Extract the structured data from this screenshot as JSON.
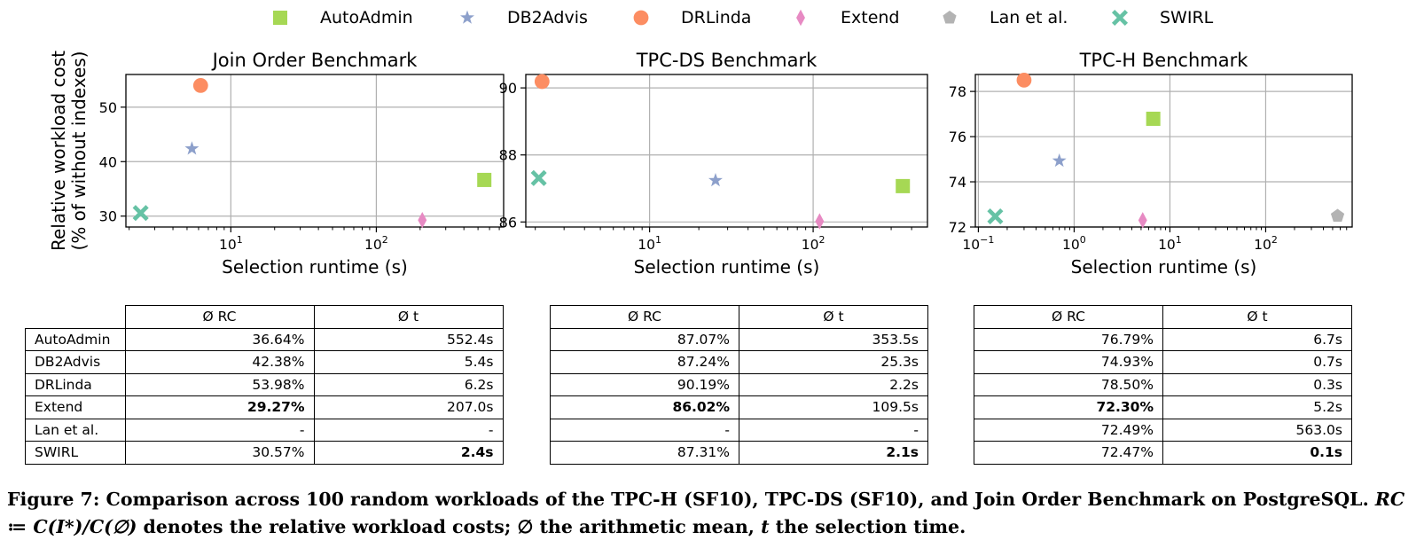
{
  "legend": [
    {
      "name": "AutoAdmin",
      "marker": "square",
      "color": "#a6d854"
    },
    {
      "name": "DB2Advis",
      "marker": "star",
      "color": "#8da0cb"
    },
    {
      "name": "DRLinda",
      "marker": "circle",
      "color": "#fc8d62"
    },
    {
      "name": "Extend",
      "marker": "diamond",
      "color": "#e78ac3"
    },
    {
      "name": "Lan et al.",
      "marker": "pentagon",
      "color": "#b3b3b3"
    },
    {
      "name": "SWIRL",
      "marker": "x",
      "color": "#66c2a5"
    }
  ],
  "chart_data": [
    {
      "type": "scatter",
      "title": "Join Order Benchmark",
      "xlabel": "Selection runtime (s)",
      "ylabel": "Relative workload cost",
      "ylabel2": "(% of without indexes)",
      "xscale": "log",
      "xlim": [
        1.9,
        750
      ],
      "ylim": [
        28,
        56
      ],
      "yticks": [
        30,
        40,
        50
      ],
      "xticks": [
        {
          "value": 10,
          "base": "10",
          "exp": "1"
        },
        {
          "value": 100,
          "base": "10",
          "exp": "2"
        }
      ],
      "grid": true,
      "series": [
        {
          "name": "AutoAdmin",
          "x": [
            552.4
          ],
          "y": [
            36.64
          ]
        },
        {
          "name": "DB2Advis",
          "x": [
            5.4
          ],
          "y": [
            42.38
          ]
        },
        {
          "name": "DRLinda",
          "x": [
            6.2
          ],
          "y": [
            53.98
          ]
        },
        {
          "name": "Extend",
          "x": [
            207.0
          ],
          "y": [
            29.27
          ]
        },
        {
          "name": "SWIRL",
          "x": [
            2.4
          ],
          "y": [
            30.57
          ]
        }
      ]
    },
    {
      "type": "scatter",
      "title": "TPC-DS Benchmark",
      "xlabel": "Selection runtime (s)",
      "xscale": "log",
      "xlim": [
        1.75,
        500
      ],
      "ylim": [
        85.85,
        90.4
      ],
      "yticks": [
        86,
        88,
        90
      ],
      "xticks": [
        {
          "value": 10,
          "base": "10",
          "exp": "1"
        },
        {
          "value": 100,
          "base": "10",
          "exp": "2"
        }
      ],
      "grid": true,
      "series": [
        {
          "name": "AutoAdmin",
          "x": [
            353.5
          ],
          "y": [
            87.07
          ]
        },
        {
          "name": "DB2Advis",
          "x": [
            25.3
          ],
          "y": [
            87.24
          ]
        },
        {
          "name": "DRLinda",
          "x": [
            2.2
          ],
          "y": [
            90.19
          ]
        },
        {
          "name": "Extend",
          "x": [
            109.5
          ],
          "y": [
            86.02
          ]
        },
        {
          "name": "SWIRL",
          "x": [
            2.1
          ],
          "y": [
            87.31
          ]
        }
      ]
    },
    {
      "type": "scatter",
      "title": "TPC-H Benchmark",
      "xlabel": "Selection runtime (s)",
      "xscale": "log",
      "xlim": [
        0.093,
        800
      ],
      "ylim": [
        72.0,
        78.75
      ],
      "yticks": [
        72,
        74,
        76,
        78
      ],
      "xticks": [
        {
          "value": 0.1,
          "base": "10",
          "exp": "−1"
        },
        {
          "value": 1,
          "base": "10",
          "exp": "0"
        },
        {
          "value": 10,
          "base": "10",
          "exp": "1"
        },
        {
          "value": 100,
          "base": "10",
          "exp": "2"
        }
      ],
      "grid": true,
      "series": [
        {
          "name": "AutoAdmin",
          "x": [
            6.7
          ],
          "y": [
            76.79
          ]
        },
        {
          "name": "DB2Advis",
          "x": [
            0.7
          ],
          "y": [
            74.93
          ]
        },
        {
          "name": "DRLinda",
          "x": [
            0.3
          ],
          "y": [
            78.5
          ]
        },
        {
          "name": "Extend",
          "x": [
            5.2
          ],
          "y": [
            72.3
          ]
        },
        {
          "name": "Lan et al.",
          "x": [
            563.0
          ],
          "y": [
            72.49
          ]
        },
        {
          "name": "SWIRL",
          "x": [
            0.15
          ],
          "y": [
            72.47
          ]
        }
      ]
    }
  ],
  "tables": {
    "header": {
      "rc": "Ø RC",
      "t": "Ø t"
    },
    "rows": [
      "AutoAdmin",
      "DB2Advis",
      "DRLinda",
      "Extend",
      "Lan et al.",
      "SWIRL"
    ],
    "job": [
      {
        "rc": "36.64%",
        "t": "552.4s"
      },
      {
        "rc": "42.38%",
        "t": "5.4s"
      },
      {
        "rc": "53.98%",
        "t": "6.2s"
      },
      {
        "rc": "29.27%",
        "t": "207.0s"
      },
      {
        "rc": "-",
        "t": "-"
      },
      {
        "rc": "30.57%",
        "t": "2.4s"
      }
    ],
    "tpcds": [
      {
        "rc": "87.07%",
        "t": "353.5s"
      },
      {
        "rc": "87.24%",
        "t": "25.3s"
      },
      {
        "rc": "90.19%",
        "t": "2.2s"
      },
      {
        "rc": "86.02%",
        "t": "109.5s"
      },
      {
        "rc": "-",
        "t": "-"
      },
      {
        "rc": "87.31%",
        "t": "2.1s"
      }
    ],
    "tpch": [
      {
        "rc": "76.79%",
        "t": "6.7s"
      },
      {
        "rc": "74.93%",
        "t": "0.7s"
      },
      {
        "rc": "78.50%",
        "t": "0.3s"
      },
      {
        "rc": "72.30%",
        "t": "5.2s"
      },
      {
        "rc": "72.49%",
        "t": "563.0s"
      },
      {
        "rc": "72.47%",
        "t": "0.1s"
      }
    ]
  },
  "caption": {
    "part1": "Figure 7: Comparison across 100 random workloads of the TPC-H (SF10), TPC-DS (SF10), and Join Order Benchmark on PostgreSQL. ",
    "math": "RC ≔ C(I*)/C(∅)",
    "part2": " denotes the relative workload costs; ∅ the arithmetic mean, ",
    "t": "t",
    "part3": " the selection time."
  }
}
